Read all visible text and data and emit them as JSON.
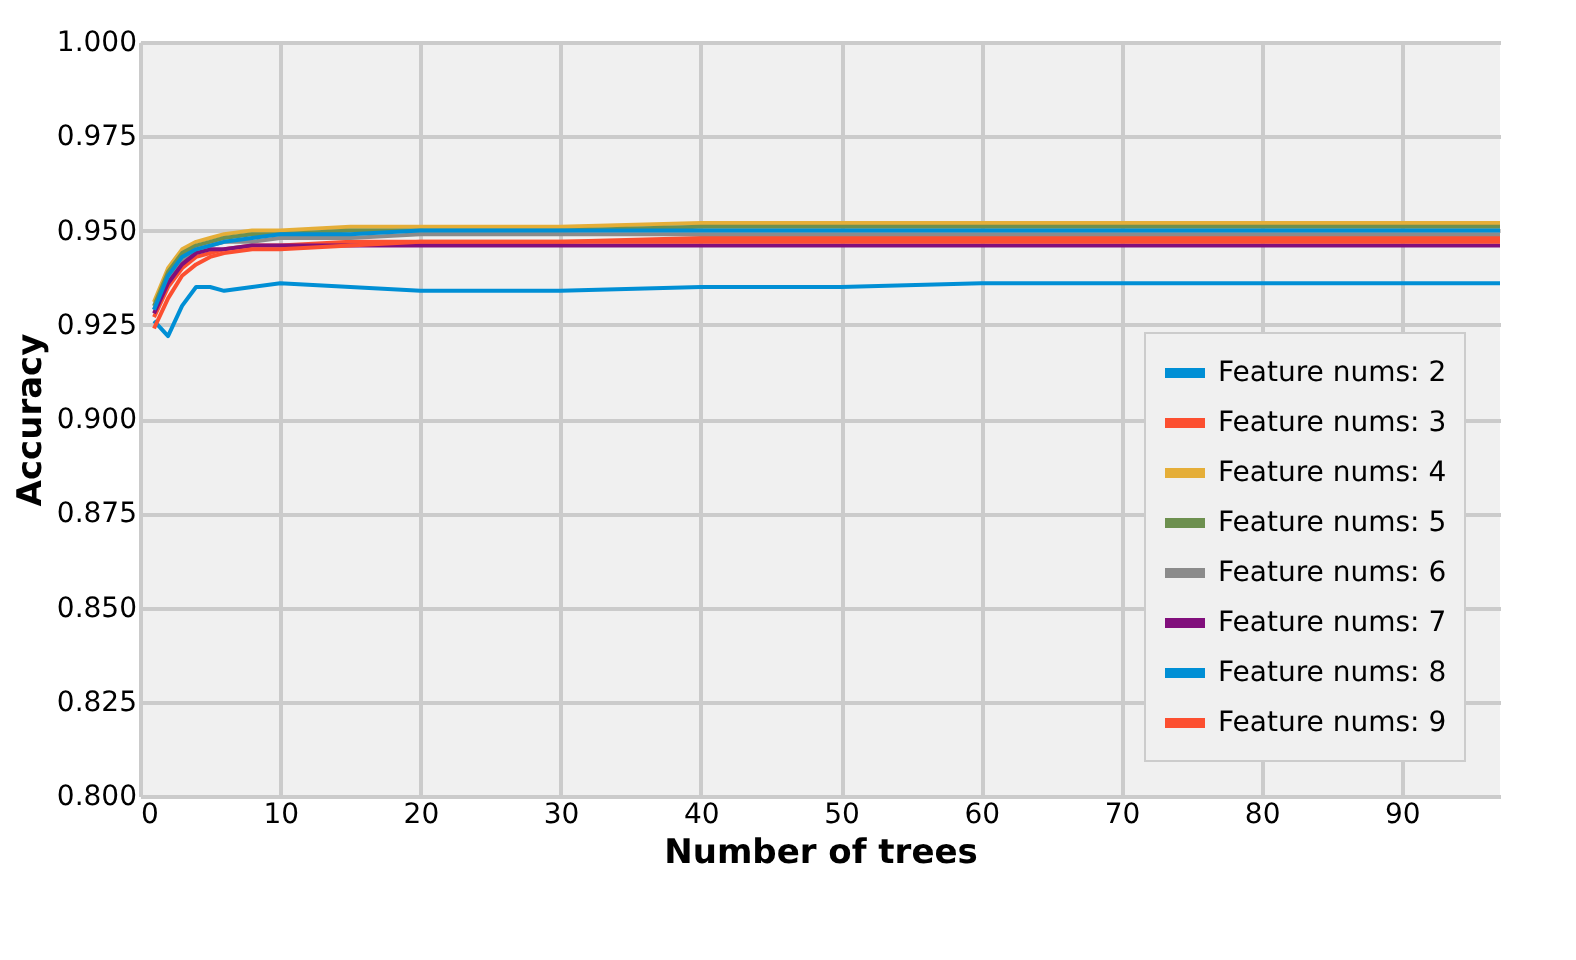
{
  "chart_data": {
    "type": "line",
    "xlabel": "Number of trees",
    "ylabel": "Accuracy",
    "x": [
      1,
      2,
      3,
      4,
      5,
      6,
      8,
      10,
      15,
      20,
      25,
      30,
      40,
      50,
      60,
      70,
      80,
      90,
      97
    ],
    "xlim": [
      0,
      97
    ],
    "xticks": [
      0,
      10,
      20,
      30,
      40,
      50,
      60,
      70,
      80,
      90
    ],
    "ylim": [
      0.8,
      1.0
    ],
    "yticks": [
      {
        "value": 0.8,
        "label": "0.800"
      },
      0.825,
      {
        "value": 0.85,
        "label": "0.850"
      },
      0.875,
      {
        "value": 0.9,
        "label": "0.900"
      },
      0.925,
      {
        "value": 0.95,
        "label": "0.950"
      },
      0.975,
      {
        "value": 1.0,
        "label": "1.000"
      }
    ],
    "grid": true,
    "legend": "bottom right",
    "line_style": "solid",
    "marker": "none",
    "series": [
      {
        "name": "Feature nums: 2",
        "color": "#008fd5",
        "values": [
          0.926,
          0.922,
          0.93,
          0.935,
          0.935,
          0.934,
          0.935,
          0.936,
          0.935,
          0.934,
          0.934,
          0.934,
          0.935,
          0.935,
          0.936,
          0.936,
          0.936,
          0.936,
          0.936
        ]
      },
      {
        "name": "Feature nums: 3",
        "color": "#fc4f30",
        "values": [
          0.927,
          0.935,
          0.94,
          0.943,
          0.944,
          0.945,
          0.946,
          0.946,
          0.947,
          0.947,
          0.947,
          0.947,
          0.948,
          0.948,
          0.948,
          0.948,
          0.948,
          0.948,
          0.948
        ]
      },
      {
        "name": "Feature nums: 4",
        "color": "#e5ae38",
        "values": [
          0.931,
          0.94,
          0.945,
          0.947,
          0.948,
          0.949,
          0.95,
          0.95,
          0.951,
          0.951,
          0.951,
          0.951,
          0.952,
          0.952,
          0.952,
          0.952,
          0.952,
          0.952,
          0.952
        ]
      },
      {
        "name": "Feature nums: 5",
        "color": "#6d904f",
        "values": [
          0.93,
          0.939,
          0.944,
          0.946,
          0.947,
          0.948,
          0.949,
          0.949,
          0.95,
          0.95,
          0.95,
          0.95,
          0.951,
          0.951,
          0.951,
          0.951,
          0.951,
          0.951,
          0.951
        ]
      },
      {
        "name": "Feature nums: 6",
        "color": "#8b8b8b",
        "values": [
          0.929,
          0.937,
          0.942,
          0.945,
          0.946,
          0.947,
          0.947,
          0.948,
          0.948,
          0.949,
          0.949,
          0.949,
          0.949,
          0.949,
          0.949,
          0.949,
          0.949,
          0.949,
          0.949
        ]
      },
      {
        "name": "Feature nums: 7",
        "color": "#810f7c",
        "values": [
          0.928,
          0.936,
          0.941,
          0.944,
          0.945,
          0.945,
          0.946,
          0.946,
          0.946,
          0.946,
          0.946,
          0.946,
          0.946,
          0.946,
          0.946,
          0.946,
          0.946,
          0.946,
          0.946
        ]
      },
      {
        "name": "Feature nums: 8",
        "color": "#008fd5",
        "values": [
          0.929,
          0.938,
          0.943,
          0.945,
          0.946,
          0.947,
          0.948,
          0.949,
          0.949,
          0.95,
          0.95,
          0.95,
          0.95,
          0.95,
          0.95,
          0.95,
          0.95,
          0.95,
          0.95
        ]
      },
      {
        "name": "Feature nums: 9",
        "color": "#fc4f30",
        "values": [
          0.924,
          0.932,
          0.938,
          0.941,
          0.943,
          0.944,
          0.945,
          0.945,
          0.946,
          0.947,
          0.947,
          0.947,
          0.947,
          0.947,
          0.947,
          0.947,
          0.947,
          0.947,
          0.947
        ]
      }
    ]
  }
}
